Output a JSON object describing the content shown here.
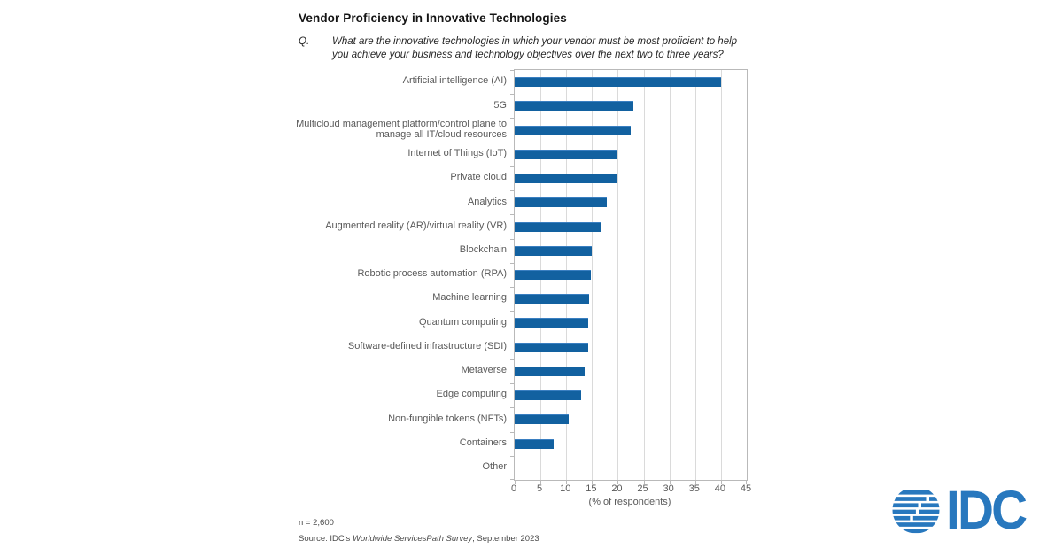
{
  "title": "Vendor Proficiency in Innovative Technologies",
  "question": {
    "prefix": "Q.",
    "line1": "What are the innovative technologies in which your vendor must be most proficient to help",
    "line2": "you achieve your business and technology objectives over the next two to three years?"
  },
  "chart_data": {
    "type": "bar",
    "orientation": "horizontal",
    "title": "Vendor Proficiency in Innovative Technologies",
    "categories": [
      "Artificial intelligence (AI)",
      "5G",
      "Multicloud management platform/control plane to manage all IT/cloud resources",
      "Internet of Things (IoT)",
      "Private cloud",
      "Analytics",
      "Augmented reality (AR)/virtual reality (VR)",
      "Blockchain",
      "Robotic process automation (RPA)",
      "Machine learning",
      "Quantum computing",
      "Software-defined infrastructure (SDI)",
      "Metaverse",
      "Edge computing",
      "Non-fungible tokens (NFTs)",
      "Containers",
      "Other"
    ],
    "values": [
      40,
      23,
      22.5,
      20,
      20,
      17.8,
      16.6,
      15,
      14.7,
      14.5,
      14.3,
      14.3,
      13.6,
      12.9,
      10.4,
      7.6,
      0
    ],
    "xlabel": "(% of respondents)",
    "xlim": [
      0,
      45
    ],
    "xticks": [
      0,
      5,
      10,
      15,
      20,
      25,
      30,
      35,
      40,
      45
    ],
    "grid": true,
    "legend": "none",
    "bar_color": "#1261a0",
    "gridline_color": "#dadada",
    "axis_color": "#b9b9b9",
    "label_color": "#595959"
  },
  "footnotes": {
    "n": "n = 2,600",
    "source_prefix": "Source: IDC's ",
    "source_italic": "Worldwide ServicesPath Survey",
    "source_suffix": ", September 2023"
  },
  "logo": {
    "text": "IDC",
    "color": "#2878be",
    "icon": "globe-stripes-icon"
  }
}
